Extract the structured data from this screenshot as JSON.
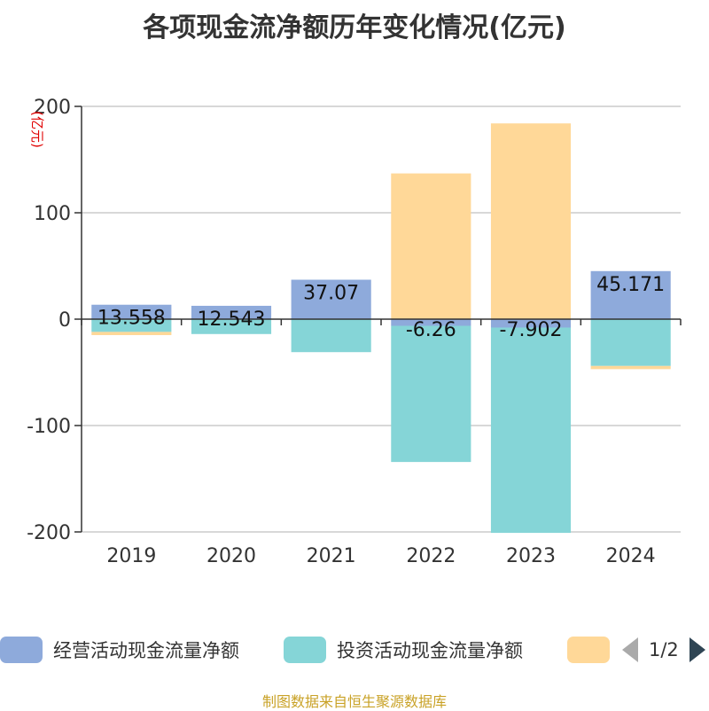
{
  "chart_data": {
    "type": "bar",
    "title": "各项现金流净额历年变化情况(亿元)",
    "ylabel": "(亿元)",
    "ylim": [
      -200,
      200
    ],
    "yticks": [
      200,
      100,
      0,
      -100,
      -200
    ],
    "categories": [
      "2019",
      "2020",
      "2021",
      "2022",
      "2023",
      "2024"
    ],
    "series": [
      {
        "name": "经营活动现金流量净额",
        "color": "#8eaadb",
        "values": [
          13.558,
          12.543,
          37.07,
          -6.26,
          -7.902,
          45.171
        ]
      },
      {
        "name": "投资活动现金流量净额",
        "color": "#85d5d7",
        "values": [
          -12,
          -14,
          -31,
          -128,
          -193,
          -44
        ]
      },
      {
        "color": "#ffd898",
        "values": [
          -3,
          0,
          0,
          137,
          184,
          -3
        ]
      }
    ],
    "data_labels": [
      "13.558",
      "12.543",
      "37.07",
      "-6.26",
      "-7.902",
      "45.171"
    ],
    "grid": true
  },
  "legend": {
    "items": [
      {
        "label": "经营活动现金流量净额",
        "color": "#8eaadb"
      },
      {
        "label": "投资活动现金流量净额",
        "color": "#85d5d7"
      },
      {
        "label": "",
        "color": "#ffd898"
      }
    ],
    "page": "1/2"
  },
  "source_note": {
    "text": "制图数据来自恒生聚源数据库",
    "color": "#c9a227"
  }
}
